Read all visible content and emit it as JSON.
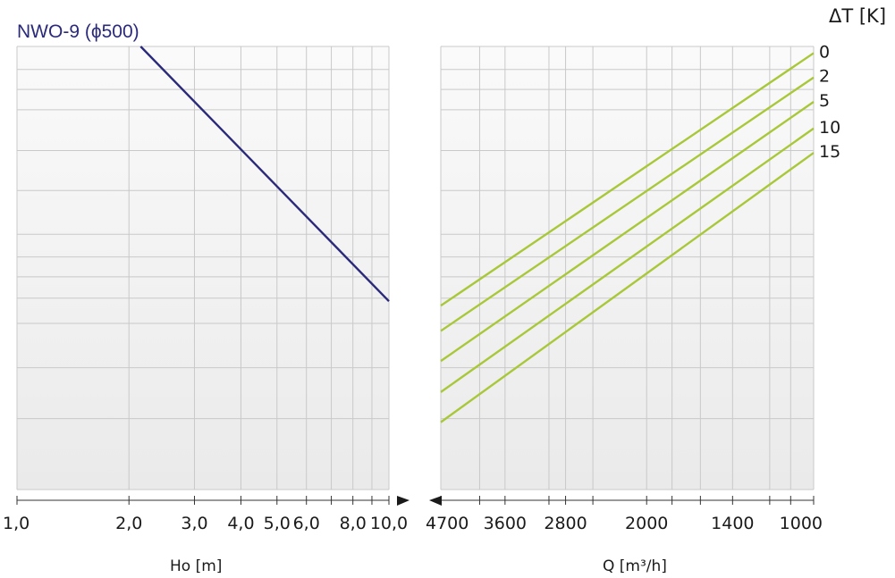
{
  "chart_data": [
    {
      "type": "line",
      "title": "NWO-9 (ϕ500)",
      "xlabel": "Ho  [m]",
      "ylabel": "",
      "x_scale": "log",
      "xlim": [
        1.0,
        10.0
      ],
      "xticks": [
        1.0,
        2.0,
        3.0,
        4.0,
        5.0,
        6.0,
        8.0,
        10.0
      ],
      "xtick_labels": [
        "1,0",
        "2,0",
        "3,0",
        "4,0",
        "5,0",
        "6,0",
        "8,0",
        "10,0"
      ],
      "y_tick_labels_shown": false,
      "grid": true,
      "series": [
        {
          "color": "#2b2a7a",
          "x": [
            2.15,
            10.0
          ],
          "y": [
            1.0,
            0.425
          ]
        }
      ]
    },
    {
      "type": "line",
      "title": "",
      "xlabel": "Q [m³/h]",
      "legend_title": "ΔT [K]",
      "x_scale": "log",
      "x_reversed": true,
      "xlim": [
        4700,
        1000
      ],
      "xticks": [
        4700,
        3600,
        2800,
        2000,
        1400,
        1000
      ],
      "xtick_labels": [
        "4700",
        "3600",
        "2800",
        "2000",
        "1400",
        "1000"
      ],
      "grid": true,
      "series": [
        {
          "name": "0",
          "color": "#a8c83a",
          "x": [
            4700,
            1000
          ],
          "y": [
            0.415,
            0.985
          ]
        },
        {
          "name": "2",
          "color": "#a8c83a",
          "x": [
            4700,
            1000
          ],
          "y": [
            0.358,
            0.93
          ]
        },
        {
          "name": "5",
          "color": "#a8c83a",
          "x": [
            4700,
            1000
          ],
          "y": [
            0.29,
            0.875
          ]
        },
        {
          "name": "10",
          "color": "#a8c83a",
          "x": [
            4700,
            1000
          ],
          "y": [
            0.22,
            0.815
          ]
        },
        {
          "name": "15",
          "color": "#a8c83a",
          "x": [
            4700,
            1000
          ],
          "y": [
            0.152,
            0.76
          ]
        }
      ]
    }
  ],
  "colors": {
    "grid": "#c9c9c9",
    "axis": "#333333",
    "background_top": "#f7f7f7",
    "background_bottom": "#ececec"
  }
}
